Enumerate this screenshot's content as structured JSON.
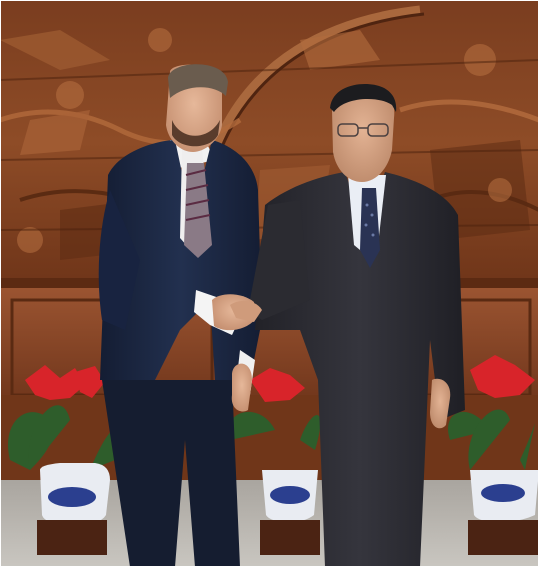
{
  "photo": {
    "subject": "handshake-between-two-men",
    "colors": {
      "carving": "#8a4a26",
      "carving_dark": "#5a2a12",
      "carving_light": "#b56c3d",
      "panel": "#8e4b2a",
      "suit_left": "#1c2740",
      "suit_right": "#2c2c33",
      "poinsettia": "#d8242a",
      "leaves": "#2d5a2a",
      "pot_white": "#e9ecf2",
      "pot_blue": "#2b3f8f",
      "floor": "#b7b4ae"
    }
  }
}
